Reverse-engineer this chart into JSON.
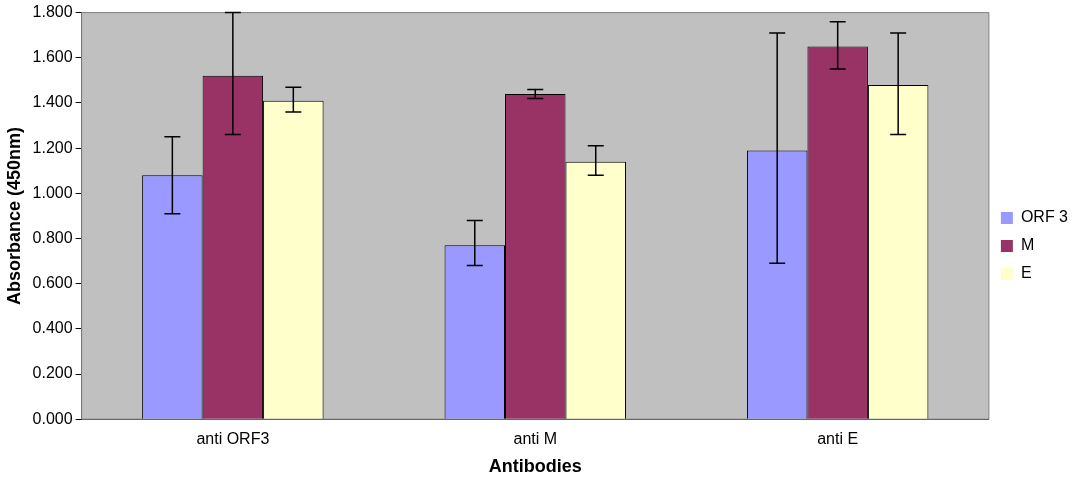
{
  "chart_data": {
    "type": "bar",
    "xlabel": "Antibodies",
    "ylabel": "Absorbance (450nm)",
    "categories": [
      "anti ORF3",
      "anti M",
      "anti E"
    ],
    "series": [
      {
        "name": "ORF 3",
        "color": "#9999ff",
        "values": [
          1.08,
          0.77,
          1.19
        ],
        "errors": [
          [
            0.91,
            1.25
          ],
          [
            0.68,
            0.88
          ],
          [
            0.69,
            1.71
          ]
        ]
      },
      {
        "name": "M",
        "color": "#993366",
        "values": [
          1.52,
          1.44,
          1.65
        ],
        "errors": [
          [
            1.26,
            1.8
          ],
          [
            1.42,
            1.46
          ],
          [
            1.55,
            1.76
          ]
        ]
      },
      {
        "name": "E",
        "color": "#ffffcc",
        "values": [
          1.41,
          1.14,
          1.48
        ],
        "errors": [
          [
            1.36,
            1.47
          ],
          [
            1.08,
            1.21
          ],
          [
            1.26,
            1.71
          ]
        ]
      }
    ],
    "ylim": [
      0,
      1.8
    ],
    "yticks": [
      {
        "value": 0,
        "label": "0.000"
      },
      {
        "value": 0.2,
        "label": "0.200"
      },
      {
        "value": 0.4,
        "label": "0.400"
      },
      {
        "value": 0.6,
        "label": "0.600"
      },
      {
        "value": 0.8,
        "label": "0.800"
      },
      {
        "value": 1.0,
        "label": "1.000"
      },
      {
        "value": 1.2,
        "label": "1.200"
      },
      {
        "value": 1.4,
        "label": "1.400"
      },
      {
        "value": 1.6,
        "label": "1.600"
      },
      {
        "value": 1.8,
        "label": "1.800"
      }
    ],
    "grid": false,
    "legend": "right"
  }
}
